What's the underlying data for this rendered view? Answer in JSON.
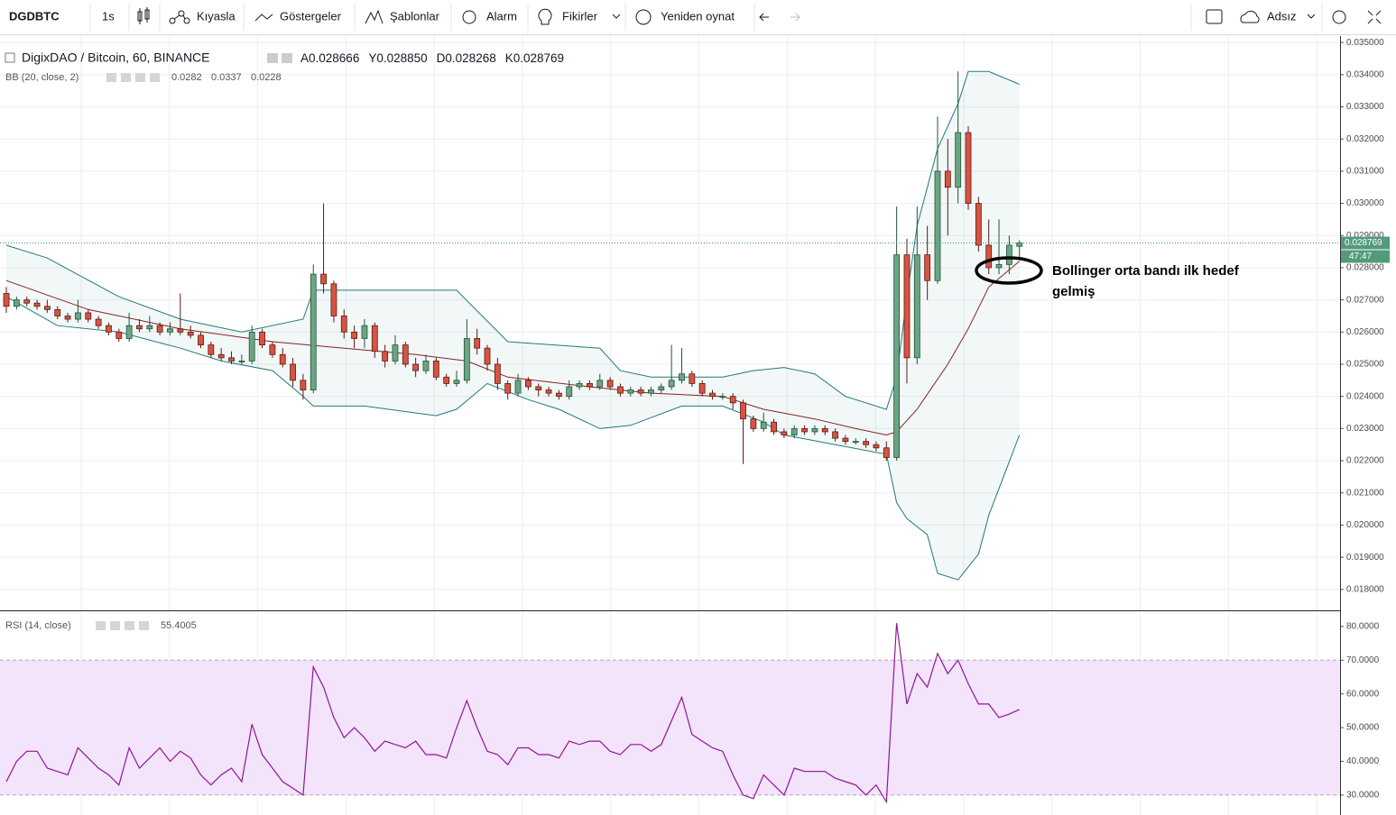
{
  "toolbar": {
    "symbol": "DGDBTC",
    "interval": "1s",
    "compare": "Kıyasla",
    "indicators": "Göstergeler",
    "templates": "Şablonlar",
    "alert": "Alarm",
    "ideas": "Fikirler",
    "replay": "Yeniden oynat",
    "layout": "Adsız"
  },
  "chart_data": [
    {
      "type": "candlestick",
      "title": "DigixDAO / Bitcoin, 60, BINANCE",
      "ohlc_legend": [
        {
          "label": "A",
          "value": "0.028666"
        },
        {
          "label": "Y",
          "value": "0.028850"
        },
        {
          "label": "D",
          "value": "0.028268"
        },
        {
          "label": "K",
          "value": "0.028769"
        }
      ],
      "xlim": [
        -0.62,
        130.33
      ],
      "ylim": [
        0.01735,
        0.0352
      ],
      "yticks": [
        {
          "value": 0.035,
          "label": "0.035000"
        },
        {
          "value": 0.034,
          "label": "0.034000"
        },
        {
          "value": 0.033,
          "label": "0.033000"
        },
        {
          "value": 0.032,
          "label": "0.032000"
        },
        {
          "value": 0.031,
          "label": "0.031000"
        },
        {
          "value": 0.03,
          "label": "0.030000"
        },
        {
          "value": 0.029,
          "label": "0.029000"
        },
        {
          "value": 0.028,
          "label": "0.028000"
        },
        {
          "value": 0.027,
          "label": "0.027000"
        },
        {
          "value": 0.026,
          "label": "0.026000"
        },
        {
          "value": 0.025,
          "label": "0.025000"
        },
        {
          "value": 0.024,
          "label": "0.024000"
        },
        {
          "value": 0.023,
          "label": "0.023000"
        },
        {
          "value": 0.022,
          "label": "0.022000"
        },
        {
          "value": 0.021,
          "label": "0.021000"
        },
        {
          "value": 0.02,
          "label": "0.020000"
        },
        {
          "value": 0.019,
          "label": "0.019000"
        },
        {
          "value": 0.018,
          "label": "0.018000"
        }
      ],
      "grid": true,
      "up_color": "#6ba583",
      "down_color": "#d75442",
      "candles": [
        [
          0.0272,
          0.0274,
          0.0266,
          0.0268
        ],
        [
          0.0268,
          0.0271,
          0.0267,
          0.027
        ],
        [
          0.027,
          0.0271,
          0.0268,
          0.0269
        ],
        [
          0.0269,
          0.027,
          0.0267,
          0.0268
        ],
        [
          0.0268,
          0.027,
          0.0266,
          0.0267
        ],
        [
          0.0267,
          0.0268,
          0.0264,
          0.0265
        ],
        [
          0.0265,
          0.0266,
          0.0263,
          0.0264
        ],
        [
          0.0264,
          0.027,
          0.0263,
          0.0266
        ],
        [
          0.0266,
          0.0267,
          0.0263,
          0.0264
        ],
        [
          0.0264,
          0.0265,
          0.0261,
          0.0262
        ],
        [
          0.0262,
          0.0263,
          0.0259,
          0.026
        ],
        [
          0.026,
          0.0261,
          0.0257,
          0.0258
        ],
        [
          0.0258,
          0.0266,
          0.0257,
          0.0262
        ],
        [
          0.0262,
          0.0264,
          0.026,
          0.0261
        ],
        [
          0.0261,
          0.0265,
          0.026,
          0.0262
        ],
        [
          0.0262,
          0.0263,
          0.0259,
          0.026
        ],
        [
          0.026,
          0.0263,
          0.0259,
          0.0261
        ],
        [
          0.0261,
          0.0272,
          0.0259,
          0.026
        ],
        [
          0.026,
          0.0262,
          0.0258,
          0.0259
        ],
        [
          0.0259,
          0.026,
          0.0255,
          0.0256
        ],
        [
          0.0256,
          0.0257,
          0.0252,
          0.0253
        ],
        [
          0.0253,
          0.0255,
          0.0251,
          0.0252
        ],
        [
          0.0252,
          0.0254,
          0.025,
          0.0251
        ],
        [
          0.0251,
          0.0253,
          0.025,
          0.0251
        ],
        [
          0.0251,
          0.0262,
          0.025,
          0.026
        ],
        [
          0.026,
          0.0261,
          0.0255,
          0.0256
        ],
        [
          0.0256,
          0.0257,
          0.0252,
          0.0253
        ],
        [
          0.0253,
          0.0255,
          0.0249,
          0.025
        ],
        [
          0.025,
          0.0252,
          0.0243,
          0.0245
        ],
        [
          0.0245,
          0.0247,
          0.0239,
          0.0242
        ],
        [
          0.0242,
          0.0281,
          0.0241,
          0.0278
        ],
        [
          0.0278,
          0.03,
          0.0272,
          0.0275
        ],
        [
          0.0275,
          0.0276,
          0.0263,
          0.0265
        ],
        [
          0.0265,
          0.0267,
          0.0258,
          0.026
        ],
        [
          0.026,
          0.0262,
          0.0255,
          0.0258
        ],
        [
          0.0258,
          0.0264,
          0.0255,
          0.0262
        ],
        [
          0.0262,
          0.0263,
          0.0252,
          0.0254
        ],
        [
          0.0254,
          0.0256,
          0.0249,
          0.0251
        ],
        [
          0.0251,
          0.0259,
          0.025,
          0.0256
        ],
        [
          0.0256,
          0.0257,
          0.0249,
          0.025
        ],
        [
          0.025,
          0.0252,
          0.0246,
          0.0248
        ],
        [
          0.0248,
          0.0253,
          0.0247,
          0.0251
        ],
        [
          0.0251,
          0.0252,
          0.0245,
          0.0246
        ],
        [
          0.0246,
          0.0247,
          0.0243,
          0.0244
        ],
        [
          0.0244,
          0.0248,
          0.0243,
          0.0245
        ],
        [
          0.0245,
          0.0264,
          0.0244,
          0.0258
        ],
        [
          0.0258,
          0.0261,
          0.0253,
          0.0255
        ],
        [
          0.0255,
          0.0256,
          0.0248,
          0.025
        ],
        [
          0.025,
          0.0252,
          0.0242,
          0.0244
        ],
        [
          0.0244,
          0.0245,
          0.0239,
          0.0241
        ],
        [
          0.0241,
          0.0247,
          0.024,
          0.0245
        ],
        [
          0.0245,
          0.0246,
          0.0242,
          0.0243
        ],
        [
          0.0243,
          0.0244,
          0.024,
          0.0242
        ],
        [
          0.0242,
          0.0243,
          0.024,
          0.0241
        ],
        [
          0.0241,
          0.0242,
          0.0239,
          0.024
        ],
        [
          0.024,
          0.0245,
          0.0239,
          0.0243
        ],
        [
          0.0243,
          0.0245,
          0.0242,
          0.0244
        ],
        [
          0.0244,
          0.0245,
          0.0242,
          0.0243
        ],
        [
          0.0243,
          0.0247,
          0.0242,
          0.0245
        ],
        [
          0.0245,
          0.0246,
          0.0242,
          0.0243
        ],
        [
          0.0243,
          0.0244,
          0.024,
          0.0241
        ],
        [
          0.0241,
          0.0243,
          0.024,
          0.0242
        ],
        [
          0.0242,
          0.0243,
          0.024,
          0.0241
        ],
        [
          0.0241,
          0.0243,
          0.024,
          0.0242
        ],
        [
          0.0242,
          0.0244,
          0.0241,
          0.0243
        ],
        [
          0.0243,
          0.0256,
          0.0242,
          0.0245
        ],
        [
          0.0245,
          0.0255,
          0.0244,
          0.0247
        ],
        [
          0.0247,
          0.0248,
          0.0243,
          0.0244
        ],
        [
          0.0244,
          0.0245,
          0.024,
          0.0241
        ],
        [
          0.0241,
          0.0242,
          0.0239,
          0.024
        ],
        [
          0.024,
          0.0241,
          0.0239,
          0.024
        ],
        [
          0.024,
          0.0241,
          0.0236,
          0.0238
        ],
        [
          0.0238,
          0.0239,
          0.0219,
          0.0233
        ],
        [
          0.0233,
          0.0234,
          0.0229,
          0.023
        ],
        [
          0.023,
          0.0235,
          0.0229,
          0.0232
        ],
        [
          0.0232,
          0.0233,
          0.0228,
          0.0229
        ],
        [
          0.0229,
          0.023,
          0.0227,
          0.0228
        ],
        [
          0.0228,
          0.0231,
          0.0227,
          0.023
        ],
        [
          0.023,
          0.0231,
          0.0228,
          0.0229
        ],
        [
          0.0229,
          0.0231,
          0.0228,
          0.023
        ],
        [
          0.023,
          0.0231,
          0.0228,
          0.0229
        ],
        [
          0.0229,
          0.023,
          0.0226,
          0.0227
        ],
        [
          0.0227,
          0.0228,
          0.0225,
          0.0226
        ],
        [
          0.0226,
          0.0227,
          0.0225,
          0.0226
        ],
        [
          0.0226,
          0.0227,
          0.0224,
          0.0225
        ],
        [
          0.0225,
          0.0226,
          0.0223,
          0.0224
        ],
        [
          0.0224,
          0.0226,
          0.022,
          0.0221
        ],
        [
          0.0221,
          0.0299,
          0.022,
          0.0284
        ],
        [
          0.0284,
          0.0289,
          0.0244,
          0.0252
        ],
        [
          0.0252,
          0.0299,
          0.025,
          0.0284
        ],
        [
          0.0284,
          0.0293,
          0.027,
          0.0276
        ],
        [
          0.0276,
          0.0327,
          0.0275,
          0.031
        ],
        [
          0.031,
          0.032,
          0.029,
          0.0305
        ],
        [
          0.0305,
          0.0341,
          0.03,
          0.0322
        ],
        [
          0.0322,
          0.0324,
          0.0298,
          0.03
        ],
        [
          0.03,
          0.0302,
          0.0285,
          0.0287
        ],
        [
          0.0287,
          0.0295,
          0.0278,
          0.028
        ],
        [
          0.028,
          0.0295,
          0.0278,
          0.0281
        ],
        [
          0.0281,
          0.029,
          0.0278,
          0.0287
        ],
        [
          0.028666,
          0.02885,
          0.028268,
          0.028769
        ]
      ],
      "last_price_label": "0.028769",
      "countdown": "47:47",
      "indicator": {
        "name": "BB (20, close, 2)",
        "values_text": [
          "0.0282",
          "0.0337",
          "0.0228"
        ],
        "fill": "#22787d",
        "upper": {
          "color": "#22787d",
          "x": [
            0,
            4,
            11,
            17,
            23,
            29,
            30,
            44,
            49,
            58,
            60,
            63,
            70,
            73,
            76,
            79,
            82,
            86,
            87,
            88,
            89,
            91,
            93,
            94,
            96,
            99
          ],
          "values": [
            0.0287,
            0.0283,
            0.0271,
            0.0264,
            0.026,
            0.0264,
            0.0273,
            0.0273,
            0.0257,
            0.0255,
            0.0248,
            0.0246,
            0.0246,
            0.0248,
            0.0249,
            0.0247,
            0.024,
            0.0236,
            0.0246,
            0.0271,
            0.0293,
            0.0317,
            0.0331,
            0.0341,
            0.0341,
            0.0337
          ]
        },
        "middle": {
          "color": "#872323",
          "x": [
            0,
            8,
            17,
            26,
            33,
            40,
            45,
            49,
            57,
            63,
            70,
            74,
            79,
            83,
            86,
            87,
            89,
            92,
            94,
            96,
            99
          ],
          "values": [
            0.0276,
            0.0267,
            0.0261,
            0.0257,
            0.0255,
            0.0253,
            0.0251,
            0.0246,
            0.0243,
            0.0241,
            0.024,
            0.0236,
            0.0233,
            0.023,
            0.0228,
            0.0229,
            0.0236,
            0.025,
            0.0261,
            0.0274,
            0.0282
          ]
        },
        "lower": {
          "color": "#22787d",
          "x": [
            0,
            5,
            11,
            17,
            21,
            26,
            29,
            30,
            35,
            42,
            44,
            47,
            51,
            54,
            58,
            61,
            66,
            70,
            74,
            76,
            81,
            86,
            87,
            88,
            90,
            91,
            93,
            95,
            96,
            99
          ],
          "values": [
            0.0271,
            0.0262,
            0.026,
            0.0255,
            0.0251,
            0.0248,
            0.024,
            0.0237,
            0.0237,
            0.0234,
            0.0236,
            0.0244,
            0.0239,
            0.0236,
            0.023,
            0.0231,
            0.0237,
            0.0237,
            0.0232,
            0.0228,
            0.0225,
            0.0222,
            0.0207,
            0.0202,
            0.0197,
            0.0185,
            0.0183,
            0.0191,
            0.0203,
            0.0228
          ]
        }
      },
      "annotation": [
        "Bollinger orta bandı ilk hedef",
        "gelmiş"
      ]
    },
    {
      "type": "line",
      "title": "RSI (14, close)",
      "value_text": "55.4005",
      "color": "#8e1599",
      "xlim": [
        -0.62,
        130.33
      ],
      "ylim": [
        24.1,
        84.5
      ],
      "yticks": [
        {
          "value": 80,
          "label": "80.0000"
        },
        {
          "value": 70,
          "label": "70.0000"
        },
        {
          "value": 60,
          "label": "60.0000"
        },
        {
          "value": 50,
          "label": "50.0000"
        },
        {
          "value": 40,
          "label": "40.0000"
        },
        {
          "value": 30,
          "label": "30.0000"
        }
      ],
      "band": [
        30,
        70
      ],
      "band_color": "#f3e3fb",
      "values": [
        34,
        40,
        43,
        43,
        38,
        37,
        36,
        44,
        41,
        38,
        36,
        33,
        44,
        38,
        41,
        44,
        40,
        43,
        41,
        36,
        33,
        36,
        38,
        34,
        51,
        42,
        38,
        34,
        32,
        30,
        68,
        62,
        53,
        47,
        50,
        47,
        43,
        46,
        45,
        44,
        46,
        42,
        42,
        41,
        50,
        58,
        50,
        43,
        42,
        39,
        44,
        44,
        42,
        42,
        41,
        46,
        45,
        46,
        46,
        43,
        42,
        45,
        45,
        43,
        45,
        52,
        59,
        48,
        46,
        44,
        43,
        36,
        30,
        29,
        36,
        33,
        30,
        38,
        37,
        37,
        37,
        35,
        34,
        33,
        30,
        33,
        28,
        81,
        57,
        66,
        62,
        72,
        66,
        70,
        63,
        57,
        57,
        53,
        54,
        55.4005
      ]
    }
  ]
}
